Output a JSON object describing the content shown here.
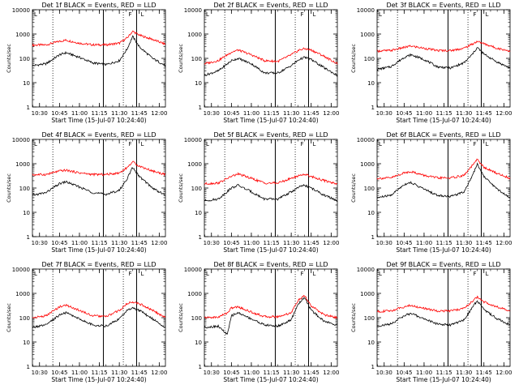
{
  "chart_data": [
    {
      "type": "line",
      "title": "Det 1f BLACK = Events, RED = LLD",
      "xlabel": "Start Time (15-Jul-07 10:24:40)",
      "ylabel": "Counts/sec",
      "xlim": [
        "10:24:40",
        "12:04:40"
      ],
      "ylim": [
        1,
        10000
      ],
      "yscale": "log",
      "xticks": [
        "10:30",
        "10:45",
        "11:00",
        "11:15",
        "11:30",
        "11:45",
        "12:00"
      ],
      "yticks": [
        "1",
        "10",
        "100",
        "1000",
        "10000"
      ],
      "markers": {
        "dotted": [
          "10:40",
          "11:33"
        ],
        "solid": [
          "11:18",
          "11:43"
        ],
        "flag_labels": [
          "F",
          "L"
        ]
      },
      "series": [
        {
          "name": "RED",
          "color": "#ff0000",
          "x": [
            "10:24:40",
            "10:35",
            "10:45",
            "10:50",
            "11:00",
            "11:10",
            "11:20",
            "11:30",
            "11:36",
            "11:40",
            "11:45",
            "11:55",
            "12:04:40"
          ],
          "values": [
            350,
            360,
            500,
            560,
            420,
            360,
            360,
            420,
            700,
            1300,
            900,
            600,
            380
          ]
        },
        {
          "name": "BLACK",
          "color": "#000000",
          "x": [
            "10:24:40",
            "10:35",
            "10:45",
            "10:50",
            "11:00",
            "11:10",
            "11:20",
            "11:30",
            "11:36",
            "11:40",
            "11:45",
            "11:55",
            "12:04:40"
          ],
          "values": [
            50,
            60,
            140,
            170,
            110,
            65,
            55,
            80,
            250,
            800,
            300,
            100,
            50
          ]
        }
      ]
    },
    {
      "type": "line",
      "title": "Det 2f BLACK = Events, RED = LLD",
      "xlabel": "Start Time (15-Jul-07 10:24:40)",
      "ylabel": "Counts/sec",
      "xlim": [
        "10:24:40",
        "12:04:40"
      ],
      "ylim": [
        1,
        10000
      ],
      "yscale": "log",
      "xticks": [
        "10:30",
        "10:45",
        "11:00",
        "11:15",
        "11:30",
        "11:45",
        "12:00"
      ],
      "yticks": [
        "1",
        "10",
        "100",
        "1000",
        "10000"
      ],
      "markers": {
        "dotted": [
          "10:40",
          "11:33"
        ],
        "solid": [
          "11:18",
          "11:43"
        ],
        "flag_labels": [
          "F",
          "L"
        ]
      },
      "series": [
        {
          "name": "RED",
          "color": "#ff0000",
          "x": [
            "10:24:40",
            "10:35",
            "10:45",
            "10:50",
            "11:00",
            "11:10",
            "11:20",
            "11:30",
            "11:36",
            "11:40",
            "11:45",
            "11:55",
            "12:04:40"
          ],
          "values": [
            60,
            80,
            180,
            220,
            140,
            80,
            75,
            140,
            220,
            250,
            220,
            120,
            60
          ]
        },
        {
          "name": "BLACK",
          "color": "#000000",
          "x": [
            "10:24:40",
            "10:35",
            "10:45",
            "10:50",
            "11:00",
            "11:10",
            "11:20",
            "11:30",
            "11:36",
            "11:40",
            "11:45",
            "11:55",
            "12:04:40"
          ],
          "values": [
            20,
            30,
            80,
            100,
            60,
            25,
            25,
            50,
            90,
            110,
            90,
            40,
            20
          ]
        }
      ]
    },
    {
      "type": "line",
      "title": "Det 3f BLACK = Events, RED = LLD",
      "xlabel": "Start Time (15-Jul-07 10:24:40)",
      "ylabel": "Counts/sec",
      "xlim": [
        "10:24:40",
        "12:04:40"
      ],
      "ylim": [
        1,
        10000
      ],
      "yscale": "log",
      "xticks": [
        "10:30",
        "10:45",
        "11:00",
        "11:15",
        "11:30",
        "11:45",
        "12:00"
      ],
      "yticks": [
        "1",
        "10",
        "100",
        "1000",
        "10000"
      ],
      "markers": {
        "dotted": [
          "10:40",
          "11:33"
        ],
        "solid": [
          "11:18",
          "11:43"
        ],
        "flag_labels": [
          "F",
          "L"
        ]
      },
      "series": [
        {
          "name": "RED",
          "color": "#ff0000",
          "x": [
            "10:24:40",
            "10:35",
            "10:45",
            "10:50",
            "11:00",
            "11:10",
            "11:20",
            "11:30",
            "11:36",
            "11:40",
            "11:45",
            "11:55",
            "12:04:40"
          ],
          "values": [
            200,
            210,
            280,
            320,
            260,
            210,
            210,
            260,
            380,
            500,
            400,
            260,
            200
          ]
        },
        {
          "name": "BLACK",
          "color": "#000000",
          "x": [
            "10:24:40",
            "10:35",
            "10:45",
            "10:50",
            "11:00",
            "11:10",
            "11:20",
            "11:30",
            "11:36",
            "11:40",
            "11:45",
            "11:55",
            "12:04:40"
          ],
          "values": [
            35,
            45,
            110,
            140,
            90,
            45,
            40,
            65,
            140,
            280,
            150,
            70,
            40
          ]
        }
      ]
    },
    {
      "type": "line",
      "title": "Det 4f BLACK = Events, RED = LLD",
      "xlabel": "Start Time (15-Jul-07 10:24:40)",
      "ylabel": "Counts/sec",
      "xlim": [
        "10:24:40",
        "12:04:40"
      ],
      "ylim": [
        1,
        10000
      ],
      "yscale": "log",
      "xticks": [
        "10:30",
        "10:45",
        "11:00",
        "11:15",
        "11:30",
        "11:45",
        "12:00"
      ],
      "yticks": [
        "1",
        "10",
        "100",
        "1000",
        "10000"
      ],
      "markers": {
        "dotted": [
          "10:40",
          "11:33"
        ],
        "solid": [
          "11:18",
          "11:43"
        ],
        "flag_labels": [
          "F",
          "L"
        ]
      },
      "series": [
        {
          "name": "RED",
          "color": "#ff0000",
          "x": [
            "10:24:40",
            "10:35",
            "10:45",
            "10:50",
            "11:00",
            "11:10",
            "11:20",
            "11:30",
            "11:36",
            "11:40",
            "11:45",
            "11:55",
            "12:04:40"
          ],
          "values": [
            350,
            360,
            500,
            540,
            420,
            360,
            360,
            420,
            700,
            1200,
            800,
            500,
            360
          ]
        },
        {
          "name": "BLACK",
          "color": "#000000",
          "x": [
            "10:24:40",
            "10:35",
            "10:45",
            "10:50",
            "11:00",
            "11:10",
            "11:20",
            "11:30",
            "11:36",
            "11:40",
            "11:45",
            "11:55",
            "12:04:40"
          ],
          "values": [
            50,
            65,
            150,
            180,
            110,
            65,
            55,
            80,
            250,
            700,
            300,
            100,
            50
          ]
        }
      ]
    },
    {
      "type": "line",
      "title": "Det 5f BLACK = Events, RED = LLD",
      "xlabel": "Start Time (15-Jul-07 10:24:40)",
      "ylabel": "Counts/sec",
      "xlim": [
        "10:24:40",
        "12:04:40"
      ],
      "ylim": [
        1,
        10000
      ],
      "yscale": "log",
      "xticks": [
        "10:30",
        "10:45",
        "11:00",
        "11:15",
        "11:30",
        "11:45",
        "12:00"
      ],
      "yticks": [
        "1",
        "10",
        "100",
        "1000",
        "10000"
      ],
      "markers": {
        "dotted": [
          "10:40",
          "11:33"
        ],
        "solid": [
          "11:18",
          "11:43"
        ],
        "flag_labels": [
          "F",
          "L"
        ]
      },
      "series": [
        {
          "name": "RED",
          "color": "#ff0000",
          "x": [
            "10:24:40",
            "10:35",
            "10:45",
            "10:50",
            "11:00",
            "11:10",
            "11:20",
            "11:30",
            "11:36",
            "11:40",
            "11:45",
            "11:55",
            "12:04:40"
          ],
          "values": [
            150,
            160,
            300,
            380,
            250,
            160,
            160,
            250,
            330,
            370,
            300,
            200,
            150
          ]
        },
        {
          "name": "BLACK",
          "color": "#000000",
          "x": [
            "10:24:40",
            "10:35",
            "10:45",
            "10:50",
            "11:00",
            "11:10",
            "11:20",
            "11:30",
            "11:36",
            "11:40",
            "11:45",
            "11:55",
            "12:04:40"
          ],
          "values": [
            30,
            35,
            100,
            130,
            70,
            35,
            35,
            70,
            110,
            130,
            100,
            50,
            30
          ]
        }
      ]
    },
    {
      "type": "line",
      "title": "Det 6f BLACK = Events, RED = LLD",
      "xlabel": "Start Time (15-Jul-07 10:24:40)",
      "ylabel": "Counts/sec",
      "xlim": [
        "10:24:40",
        "12:04:40"
      ],
      "ylim": [
        1,
        10000
      ],
      "yscale": "log",
      "xticks": [
        "10:30",
        "10:45",
        "11:00",
        "11:15",
        "11:30",
        "11:45",
        "12:00"
      ],
      "yticks": [
        "1",
        "10",
        "100",
        "1000",
        "10000"
      ],
      "markers": {
        "dotted": [
          "10:40",
          "11:33"
        ],
        "solid": [
          "11:18",
          "11:43"
        ],
        "flag_labels": [
          "F",
          "L"
        ]
      },
      "series": [
        {
          "name": "RED",
          "color": "#ff0000",
          "x": [
            "10:24:40",
            "10:35",
            "10:45",
            "10:50",
            "11:00",
            "11:10",
            "11:20",
            "11:30",
            "11:36",
            "11:40",
            "11:45",
            "11:55",
            "12:04:40"
          ],
          "values": [
            250,
            260,
            420,
            480,
            330,
            260,
            260,
            330,
            800,
            1500,
            700,
            400,
            250
          ]
        },
        {
          "name": "BLACK",
          "color": "#000000",
          "x": [
            "10:24:40",
            "10:35",
            "10:45",
            "10:50",
            "11:00",
            "11:10",
            "11:20",
            "11:30",
            "11:36",
            "11:40",
            "11:45",
            "11:55",
            "12:04:40"
          ],
          "values": [
            40,
            50,
            140,
            170,
            90,
            50,
            45,
            70,
            300,
            1000,
            300,
            90,
            40
          ]
        }
      ]
    },
    {
      "type": "line",
      "title": "Det 7f BLACK = Events, RED = LLD",
      "xlabel": "Start Time (15-Jul-07 10:24:40)",
      "ylabel": "Counts/sec",
      "xlim": [
        "10:24:40",
        "12:04:40"
      ],
      "ylim": [
        1,
        10000
      ],
      "yscale": "log",
      "xticks": [
        "10:30",
        "10:45",
        "11:00",
        "11:15",
        "11:30",
        "11:45",
        "12:00"
      ],
      "yticks": [
        "1",
        "10",
        "100",
        "1000",
        "10000"
      ],
      "markers": {
        "dotted": [
          "10:40",
          "11:33"
        ],
        "solid": [
          "11:18",
          "11:43"
        ],
        "flag_labels": [
          "F",
          "L"
        ]
      },
      "series": [
        {
          "name": "RED",
          "color": "#ff0000",
          "x": [
            "10:24:40",
            "10:35",
            "10:45",
            "10:50",
            "11:00",
            "11:10",
            "11:20",
            "11:30",
            "11:36",
            "11:40",
            "11:45",
            "11:55",
            "12:04:40"
          ],
          "values": [
            100,
            120,
            280,
            330,
            200,
            120,
            110,
            200,
            380,
            450,
            380,
            200,
            100
          ]
        },
        {
          "name": "BLACK",
          "color": "#000000",
          "x": [
            "10:24:40",
            "10:35",
            "10:45",
            "10:50",
            "11:00",
            "11:10",
            "11:20",
            "11:30",
            "11:36",
            "11:40",
            "11:45",
            "11:55",
            "12:04:40"
          ],
          "values": [
            40,
            50,
            130,
            160,
            90,
            50,
            45,
            90,
            200,
            250,
            200,
            90,
            40
          ]
        }
      ]
    },
    {
      "type": "line",
      "title": "Det 8f BLACK = Events, RED = LLD",
      "xlabel": "Start Time (15-Jul-07 10:24:40)",
      "ylabel": "Counts/sec",
      "xlim": [
        "10:24:40",
        "12:04:40"
      ],
      "ylim": [
        1,
        10000
      ],
      "yscale": "log",
      "xticks": [
        "10:30",
        "10:45",
        "11:00",
        "11:15",
        "11:30",
        "11:45",
        "12:00"
      ],
      "yticks": [
        "1",
        "10",
        "100",
        "1000",
        "10000"
      ],
      "markers": {
        "dotted": [
          "10:40",
          "11:33"
        ],
        "solid": [
          "11:18",
          "11:43"
        ],
        "flag_labels": [
          "F",
          "L"
        ]
      },
      "series": [
        {
          "name": "RED",
          "color": "#ff0000",
          "x": [
            "10:24:40",
            "10:35",
            "10:42",
            "10:45",
            "10:50",
            "11:00",
            "11:10",
            "11:20",
            "11:30",
            "11:35",
            "11:40",
            "11:45",
            "11:55",
            "12:04:40"
          ],
          "values": [
            100,
            105,
            160,
            250,
            280,
            170,
            110,
            110,
            160,
            500,
            800,
            300,
            130,
            100
          ]
        },
        {
          "name": "BLACK",
          "color": "#000000",
          "x": [
            "10:24:40",
            "10:35",
            "10:42",
            "10:45",
            "10:50",
            "11:00",
            "11:10",
            "11:20",
            "11:30",
            "11:35",
            "11:40",
            "11:45",
            "11:55",
            "12:04:40"
          ],
          "values": [
            40,
            45,
            20,
            120,
            160,
            90,
            50,
            45,
            80,
            350,
            700,
            200,
            70,
            50
          ]
        }
      ]
    },
    {
      "type": "line",
      "title": "Det 9f BLACK = Events, RED = LLD",
      "xlabel": "Start Time (15-Jul-07 10:24:40)",
      "ylabel": "Counts/sec",
      "xlim": [
        "10:24:40",
        "12:04:40"
      ],
      "ylim": [
        1,
        10000
      ],
      "yscale": "log",
      "xticks": [
        "10:30",
        "10:45",
        "11:00",
        "11:15",
        "11:30",
        "11:45",
        "12:00"
      ],
      "yticks": [
        "1",
        "10",
        "100",
        "1000",
        "10000"
      ],
      "markers": {
        "dotted": [
          "10:40",
          "11:33"
        ],
        "solid": [
          "11:18",
          "11:43"
        ],
        "flag_labels": [
          "F",
          "L"
        ]
      },
      "series": [
        {
          "name": "RED",
          "color": "#ff0000",
          "x": [
            "10:24:40",
            "10:35",
            "10:45",
            "10:50",
            "11:00",
            "11:10",
            "11:20",
            "11:30",
            "11:36",
            "11:40",
            "11:45",
            "11:55",
            "12:04:40"
          ],
          "values": [
            180,
            190,
            280,
            320,
            240,
            190,
            190,
            240,
            450,
            700,
            450,
            280,
            180
          ]
        },
        {
          "name": "BLACK",
          "color": "#000000",
          "x": [
            "10:24:40",
            "10:35",
            "10:45",
            "10:50",
            "11:00",
            "11:10",
            "11:20",
            "11:30",
            "11:36",
            "11:40",
            "11:45",
            "11:55",
            "12:04:40"
          ],
          "values": [
            45,
            55,
            120,
            150,
            90,
            55,
            50,
            80,
            250,
            500,
            220,
            90,
            50
          ]
        }
      ]
    }
  ]
}
